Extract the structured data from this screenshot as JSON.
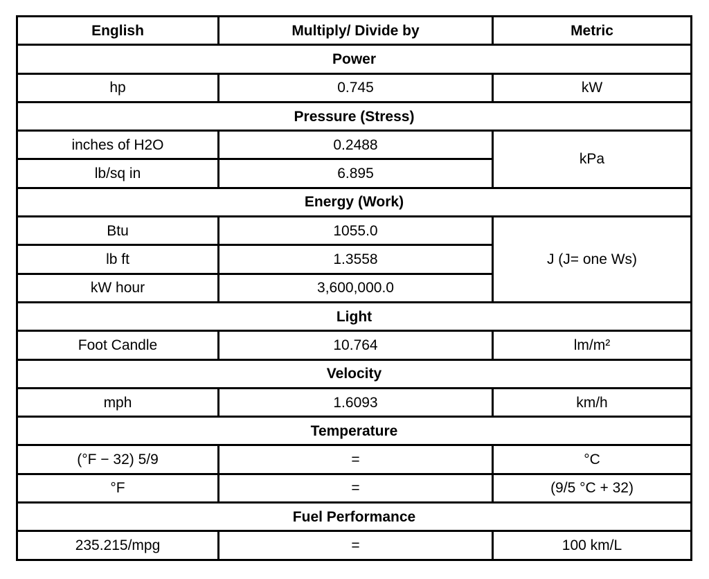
{
  "header": {
    "english": "English",
    "factor": "Multiply/ Divide by",
    "metric": "Metric"
  },
  "sections": [
    {
      "title": "Power",
      "metric": "kW",
      "rows": [
        {
          "english": "hp",
          "factor": "0.745"
        }
      ]
    },
    {
      "title": "Pressure (Stress)",
      "metric": "kPa",
      "rows": [
        {
          "english": "inches of H2O",
          "factor": "0.2488"
        },
        {
          "english": "lb/sq in",
          "factor": "6.895"
        }
      ]
    },
    {
      "title": "Energy (Work)",
      "metric": "J (J= one Ws)",
      "rows": [
        {
          "english": "Btu",
          "factor": "1055.0"
        },
        {
          "english": "lb ft",
          "factor": "1.3558"
        },
        {
          "english": "kW hour",
          "factor": "3,600,000.0"
        }
      ]
    },
    {
      "title": "Light",
      "metric": "lm/m²",
      "rows": [
        {
          "english": "Foot Candle",
          "factor": "10.764"
        }
      ]
    },
    {
      "title": "Velocity",
      "metric": "km/h",
      "rows": [
        {
          "english": "mph",
          "factor": "1.6093"
        }
      ]
    },
    {
      "title": "Temperature",
      "rows": [
        {
          "english": "(°F − 32) 5/9",
          "factor": "=",
          "metric": "°C"
        },
        {
          "english": "°F",
          "factor": "=",
          "metric": "(9/5 °C + 32)"
        }
      ]
    },
    {
      "title": "Fuel Performance",
      "metric": "100 km/L",
      "rows": [
        {
          "english": "235.215/mpg",
          "factor": "="
        }
      ]
    }
  ]
}
